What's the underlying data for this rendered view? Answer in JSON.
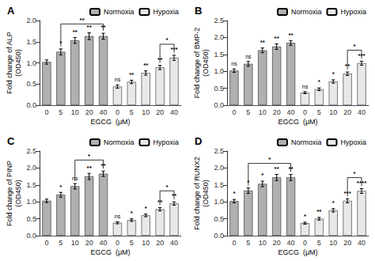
{
  "chart_data": [
    {
      "type": "bar",
      "title": "A",
      "ylabel": "Fold change of ALP\n(OD450)",
      "xlabel": "EGCG  (μM)",
      "categories": [
        "0",
        "5",
        "10",
        "20",
        "40",
        "0",
        "5",
        "10",
        "20",
        "40"
      ],
      "series": [
        {
          "name": "Normoxia",
          "color": "#b0b0b0",
          "values": [
            1.02,
            1.26,
            1.53,
            1.63,
            1.63,
            null,
            null,
            null,
            null,
            null
          ],
          "errors": [
            0.05,
            0.07,
            0.07,
            0.08,
            0.07,
            null,
            null,
            null,
            null,
            null
          ],
          "annotations": [
            null,
            "*",
            "**",
            "**",
            "**",
            null,
            null,
            null,
            null,
            null
          ],
          "brackets": [
            {
              "from": 1,
              "to": 4,
              "label": "**"
            }
          ]
        },
        {
          "name": "Hypoxia",
          "color": "#e8e8e8",
          "values": [
            null,
            null,
            null,
            null,
            null,
            0.44,
            0.55,
            0.76,
            0.89,
            1.12
          ],
          "errors": [
            null,
            null,
            null,
            null,
            null,
            0.04,
            0.04,
            0.05,
            0.05,
            0.06
          ],
          "annotations": [
            null,
            null,
            null,
            null,
            null,
            "ns",
            "**",
            "**",
            "**",
            "***"
          ],
          "brackets": [
            {
              "from": 8,
              "to": 9,
              "label": "*"
            }
          ]
        }
      ],
      "ylim": [
        0,
        2.0
      ],
      "yticks": [
        {
          "value": 0.0,
          "label": "0.0"
        },
        {
          "value": 0.5,
          "label": "0.5"
        },
        {
          "value": 1.0,
          "label": "1.0"
        },
        {
          "value": 1.5,
          "label": "1.5"
        },
        {
          "value": 2.0,
          "label": "2.0"
        }
      ],
      "grid": false,
      "legend": "upper right"
    },
    {
      "type": "bar",
      "title": "B",
      "ylabel": "Fold change of BMP-2\n(OD450)",
      "xlabel": "EGCG  (μM)",
      "categories": [
        "0",
        "5",
        "10",
        "20",
        "40",
        "0",
        "5",
        "10",
        "20",
        "40"
      ],
      "series": [
        {
          "name": "Normoxia",
          "color": "#b0b0b0",
          "values": [
            1.02,
            1.22,
            1.62,
            1.73,
            1.84,
            null,
            null,
            null,
            null,
            null
          ],
          "errors": [
            0.05,
            0.07,
            0.07,
            0.08,
            0.07,
            null,
            null,
            null,
            null,
            null
          ],
          "annotations": [
            "ns",
            "ns",
            "**",
            "**",
            "**",
            null,
            null,
            null,
            null,
            null
          ]
        },
        {
          "name": "Hypoxia",
          "color": "#e8e8e8",
          "values": [
            null,
            null,
            null,
            null,
            null,
            0.37,
            0.47,
            0.7,
            0.93,
            1.24
          ],
          "errors": [
            null,
            null,
            null,
            null,
            null,
            0.03,
            0.04,
            0.05,
            0.05,
            0.06
          ],
          "annotations": [
            null,
            null,
            null,
            null,
            null,
            "ns",
            "*",
            "*",
            "**",
            "***"
          ],
          "brackets": [
            {
              "from": 8,
              "to": 9,
              "label": "*"
            }
          ]
        }
      ],
      "ylim": [
        0,
        2.5
      ],
      "yticks": [
        {
          "value": 0.0,
          "label": "0.0"
        },
        {
          "value": 0.5,
          "label": "0.5"
        },
        {
          "value": 1.0,
          "label": "1.0"
        },
        {
          "value": 1.5,
          "label": "1.5"
        },
        {
          "value": 2.0,
          "label": "2.0"
        },
        {
          "value": 2.5,
          "label": "2.5"
        }
      ],
      "grid": false,
      "legend": "upper right"
    },
    {
      "type": "bar",
      "title": "C",
      "ylabel": "Fold change of PINP\n(OD450)",
      "xlabel": "EGCG  (μM)",
      "categories": [
        "0",
        "5",
        "10",
        "20",
        "40",
        "0",
        "5",
        "10",
        "20",
        "40"
      ],
      "series": [
        {
          "name": "Normoxia",
          "color": "#b0b0b0",
          "values": [
            1.03,
            1.21,
            1.46,
            1.75,
            1.83,
            null,
            null,
            null,
            null,
            null
          ],
          "errors": [
            0.05,
            0.07,
            0.08,
            0.09,
            0.08,
            null,
            null,
            null,
            null,
            null
          ],
          "annotations": [
            null,
            "*",
            "ns",
            "**",
            "**",
            null,
            null,
            null,
            null,
            null
          ],
          "brackets": [
            {
              "from": 2,
              "to": 4,
              "label": "*"
            }
          ]
        },
        {
          "name": "Hypoxia",
          "color": "#e8e8e8",
          "values": [
            null,
            null,
            null,
            null,
            null,
            0.38,
            0.46,
            0.6,
            0.78,
            0.95
          ],
          "errors": [
            null,
            null,
            null,
            null,
            null,
            0.03,
            0.04,
            0.04,
            0.05,
            0.05
          ],
          "annotations": [
            null,
            null,
            null,
            null,
            null,
            "ns",
            "*",
            "*",
            "**",
            "**"
          ],
          "brackets": [
            {
              "from": 8,
              "to": 9,
              "label": "*"
            }
          ]
        }
      ],
      "ylim": [
        0,
        2.5
      ],
      "yticks": [
        {
          "value": 0.0,
          "label": "0.0"
        },
        {
          "value": 0.5,
          "label": "0.5"
        },
        {
          "value": 1.0,
          "label": "1.0"
        },
        {
          "value": 1.5,
          "label": "1.5"
        },
        {
          "value": 2.0,
          "label": "2.0"
        },
        {
          "value": 2.5,
          "label": "2.5"
        }
      ],
      "grid": false,
      "legend": "upper right"
    },
    {
      "type": "bar",
      "title": "D",
      "ylabel": "Fold change of RUNX2\n(OD450)",
      "xlabel": "EGCG  (μM)",
      "categories": [
        "0",
        "5",
        "10",
        "20",
        "40",
        "0",
        "5",
        "10",
        "20",
        "40"
      ],
      "series": [
        {
          "name": "Normoxia",
          "color": "#b0b0b0",
          "values": [
            1.02,
            1.33,
            1.53,
            1.72,
            1.72,
            null,
            null,
            null,
            null,
            null
          ],
          "errors": [
            0.05,
            0.08,
            0.08,
            0.09,
            0.09,
            null,
            null,
            null,
            null,
            null
          ],
          "annotations": [
            "*",
            "*",
            "*",
            "**",
            "**",
            null,
            null,
            null,
            null,
            null
          ],
          "brackets": [
            {
              "from": 1,
              "to": 4,
              "label": "*"
            }
          ]
        },
        {
          "name": "Hypoxia",
          "color": "#e8e8e8",
          "values": [
            null,
            null,
            null,
            null,
            null,
            0.37,
            0.5,
            0.75,
            1.03,
            1.32
          ],
          "errors": [
            null,
            null,
            null,
            null,
            null,
            0.03,
            0.04,
            0.05,
            0.06,
            0.07
          ],
          "annotations": [
            null,
            null,
            null,
            null,
            null,
            "*",
            "**",
            "*",
            "***",
            "****"
          ],
          "brackets": [
            {
              "from": 8,
              "to": 9,
              "label": "*"
            }
          ]
        }
      ],
      "ylim": [
        0,
        2.5
      ],
      "yticks": [
        {
          "value": 0.0,
          "label": "0.0"
        },
        {
          "value": 0.5,
          "label": "0.5"
        },
        {
          "value": 1.0,
          "label": "1.0"
        },
        {
          "value": 1.5,
          "label": "1.5"
        },
        {
          "value": 2.0,
          "label": "2.0"
        },
        {
          "value": 2.5,
          "label": "2.5"
        }
      ],
      "grid": false,
      "legend": "upper right"
    }
  ]
}
